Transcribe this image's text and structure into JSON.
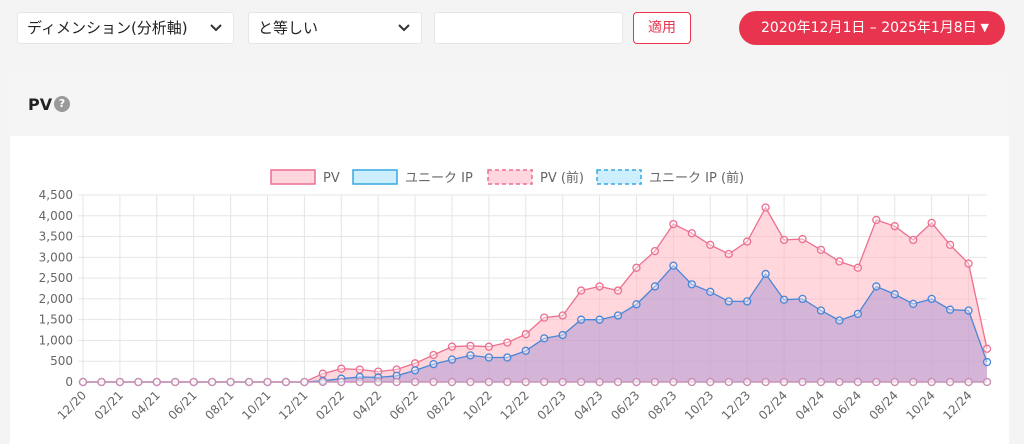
{
  "filters": {
    "dimension_select": "ディメンション(分析軸)",
    "operator_select": "と等しい",
    "value_input": "",
    "apply_label": "適用",
    "date_range": "2020年12月1日 – 2025年1月8日"
  },
  "card": {
    "title": "PV",
    "help_icon": "?"
  },
  "colors": {
    "accent": "#e8344f",
    "pv_line": "#ec6f8f",
    "pv_fill": "rgba(255,182,193,0.55)",
    "uip_line": "#4a86d6",
    "uip_fill": "rgba(160,140,210,0.45)",
    "prev_point": "#c990b4"
  },
  "chart_data": {
    "type": "area",
    "title": "",
    "legend": [
      "PV",
      "ユニーク IP",
      "PV (前)",
      "ユニーク IP (前)"
    ],
    "legend_position": "top",
    "ylim": [
      0,
      4500
    ],
    "yticks": [
      "0",
      "500",
      "1,000",
      "1,500",
      "2,000",
      "2,500",
      "3,000",
      "3,500",
      "4,000",
      "4,500"
    ],
    "x_tick_labels": [
      "12/20",
      "02/21",
      "04/21",
      "06/21",
      "08/21",
      "10/21",
      "12/21",
      "02/22",
      "04/22",
      "06/22",
      "08/22",
      "10/22",
      "12/22",
      "02/23",
      "04/23",
      "06/23",
      "08/23",
      "10/23",
      "12/23",
      "02/24",
      "04/24",
      "06/24",
      "08/24",
      "10/24",
      "12/24"
    ],
    "grid": true,
    "series": [
      {
        "name": "PV",
        "values": [
          0,
          0,
          0,
          0,
          0,
          0,
          0,
          0,
          0,
          0,
          0,
          0,
          0,
          200,
          320,
          300,
          250,
          300,
          450,
          650,
          850,
          870,
          850,
          950,
          1150,
          1550,
          1600,
          2200,
          2300,
          2200,
          2750,
          3150,
          3800,
          3580,
          3300,
          3080,
          3380,
          4200,
          3420,
          3440,
          3180,
          2900,
          2750,
          3900,
          3750,
          3420,
          3830,
          3300,
          2850,
          800
        ]
      },
      {
        "name": "ユニーク IP",
        "values": [
          0,
          0,
          0,
          0,
          0,
          0,
          0,
          0,
          0,
          0,
          0,
          0,
          0,
          30,
          80,
          120,
          110,
          150,
          280,
          430,
          540,
          640,
          590,
          590,
          750,
          1050,
          1130,
          1500,
          1500,
          1600,
          1870,
          2300,
          2800,
          2350,
          2170,
          1940,
          1940,
          2600,
          1980,
          2000,
          1720,
          1480,
          1640,
          2300,
          2110,
          1880,
          2000,
          1740,
          1720,
          480
        ]
      },
      {
        "name": "PV (前)",
        "values": [
          0,
          0,
          0,
          0,
          0,
          0,
          0,
          0,
          0,
          0,
          0,
          0,
          0,
          0,
          0,
          0,
          0,
          0,
          0,
          0,
          0,
          0,
          0,
          0,
          0,
          0,
          0,
          0,
          0,
          0,
          0,
          0,
          0,
          0,
          0,
          0,
          0,
          0,
          0,
          0,
          0,
          0,
          0,
          0,
          0,
          0,
          0,
          0,
          0,
          0
        ]
      },
      {
        "name": "ユニーク IP (前)",
        "values": [
          0,
          0,
          0,
          0,
          0,
          0,
          0,
          0,
          0,
          0,
          0,
          0,
          0,
          0,
          0,
          0,
          0,
          0,
          0,
          0,
          0,
          0,
          0,
          0,
          0,
          0,
          0,
          0,
          0,
          0,
          0,
          0,
          0,
          0,
          0,
          0,
          0,
          0,
          0,
          0,
          0,
          0,
          0,
          0,
          0,
          0,
          0,
          0,
          0,
          0
        ]
      }
    ]
  }
}
